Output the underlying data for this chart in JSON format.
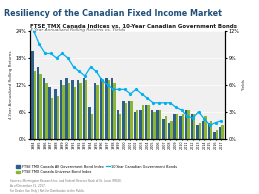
{
  "title": "Resiliency of the Canadian Fixed Income Market",
  "subtitle1": "FTSE TMX Canada Indices vs. 10-Year Canadian Government Bonds",
  "subtitle2": "4-Year Annualized Rolling Returns vs. Yields",
  "years": [
    "1984",
    "1985",
    "1986",
    "1987",
    "1988",
    "1989",
    "1990",
    "1991",
    "1992",
    "1993",
    "1994",
    "1995",
    "1996",
    "1997",
    "1998",
    "1999",
    "2000",
    "2001",
    "2002",
    "2003",
    "2004",
    "2005",
    "2006",
    "2007",
    "2008",
    "2009",
    "2010",
    "2011",
    "2012",
    "2013",
    "2014",
    "2015",
    "2016",
    "2017"
  ],
  "gov_bond_returns": [
    19.5,
    16.0,
    13.5,
    11.5,
    11.0,
    13.0,
    13.5,
    13.0,
    13.0,
    13.5,
    7.0,
    12.5,
    13.5,
    13.5,
    13.5,
    6.5,
    8.5,
    8.5,
    6.0,
    6.5,
    7.5,
    6.5,
    6.5,
    4.5,
    3.5,
    5.5,
    5.0,
    6.5,
    5.5,
    3.0,
    4.0,
    3.5,
    1.5,
    2.5
  ],
  "universe_returns": [
    15.0,
    14.5,
    12.5,
    9.0,
    9.5,
    12.0,
    12.5,
    11.5,
    12.5,
    13.0,
    5.5,
    12.0,
    13.0,
    13.0,
    12.5,
    5.5,
    8.0,
    8.5,
    6.5,
    7.5,
    7.5,
    6.0,
    6.5,
    5.0,
    4.0,
    5.5,
    5.5,
    6.5,
    5.5,
    3.5,
    5.0,
    4.0,
    2.0,
    3.0
  ],
  "bond_yield": [
    12.0,
    10.5,
    9.5,
    9.5,
    9.0,
    9.5,
    9.0,
    8.0,
    7.5,
    7.0,
    8.0,
    7.5,
    6.5,
    6.0,
    5.5,
    5.5,
    5.5,
    5.0,
    5.5,
    5.0,
    4.5,
    4.0,
    4.0,
    4.0,
    4.0,
    3.5,
    3.2,
    2.5,
    2.3,
    3.0,
    2.2,
    1.5,
    1.8,
    2.0
  ],
  "bar_color1": "#2e5f8a",
  "bar_color2": "#8cb531",
  "line_color": "#00b0f0",
  "bg_color": "#ffffff",
  "title_bg": "#dce9f5",
  "title_color": "#1f4e79",
  "chart_bg": "#f0f0f0",
  "ylabel_left": "4-Year Annualized Rolling Returns",
  "ylabel_right": "Yields",
  "ylim_left": [
    0,
    24
  ],
  "ylim_right": [
    0,
    12
  ],
  "yticks_left": [
    0,
    6,
    12,
    18,
    24
  ],
  "yticks_left_labels": [
    "0%",
    "6%",
    "12%",
    "18%",
    "24%"
  ],
  "yticks_right": [
    0,
    3,
    6,
    9,
    12
  ],
  "yticks_right_labels": [
    "0%",
    "3%",
    "6%",
    "9%",
    "12%"
  ],
  "legend1": "FTSE TMX Canada All Government Bond Index",
  "legend2": "FTSE TMX Canada Universe Bond Index",
  "legend3": "10-Year Canadian Government Bonds",
  "source_text": "Sources: Morningstar Research Inc. and Federal Reserve Bank of St. Louis (FRED).\nAs of December 31, 2017.\nFor Dealer Use Only | Not for Distribution to the Public."
}
